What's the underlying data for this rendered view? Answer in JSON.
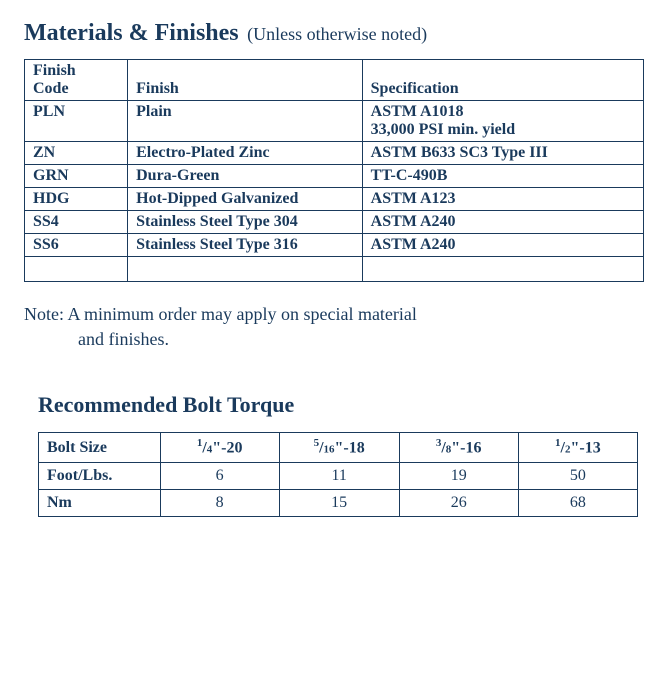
{
  "heading": {
    "main": "Materials & Finishes",
    "sub": "(Unless otherwise noted)"
  },
  "materialsTable": {
    "headers": {
      "codeLine1": "Finish",
      "codeLine2": "Code",
      "finish": "Finish",
      "spec": "Specification"
    },
    "rows": [
      {
        "code": "PLN",
        "finish": "Plain",
        "specLine1": "ASTM A1018",
        "specLine2": "33,000 PSI min. yield"
      },
      {
        "code": "ZN",
        "finish": "Electro-Plated Zinc",
        "specLine1": "ASTM B633 SC3 Type III",
        "specLine2": ""
      },
      {
        "code": "GRN",
        "finish": "Dura-Green",
        "specLine1": "TT-C-490B",
        "specLine2": ""
      },
      {
        "code": "HDG",
        "finish": "Hot-Dipped Galvanized",
        "specLine1": "ASTM A123",
        "specLine2": ""
      },
      {
        "code": "SS4",
        "finish": "Stainless Steel Type 304",
        "specLine1": "ASTM A240",
        "specLine2": ""
      },
      {
        "code": "SS6",
        "finish": "Stainless Steel Type 316",
        "specLine1": "ASTM A240",
        "specLine2": ""
      }
    ]
  },
  "note": {
    "line1": "Note: A minimum order may apply on special material",
    "line2": "and finishes."
  },
  "torque": {
    "title": "Recommended Bolt Torque",
    "headers": {
      "boltSize": "Bolt Size"
    },
    "sizes": [
      {
        "num": "1",
        "den": "4",
        "thread": "\"-20"
      },
      {
        "num": "5",
        "den": "16",
        "thread": "\"-18"
      },
      {
        "num": "3",
        "den": "8",
        "thread": "\"-16"
      },
      {
        "num": "1",
        "den": "2",
        "thread": "\"-13"
      }
    ],
    "rows": [
      {
        "label": "Foot/Lbs.",
        "values": [
          "6",
          "11",
          "19",
          "50"
        ]
      },
      {
        "label": "Nm",
        "values": [
          "8",
          "15",
          "26",
          "68"
        ]
      }
    ]
  },
  "style": {
    "textColor": "#1a3a5c",
    "borderColor": "#1a3a5c",
    "background": "#ffffff",
    "titleFontSize": 24,
    "subtitleFontSize": 18,
    "sectionTitleFontSize": 22,
    "bodyFontSize": 16,
    "noteFontSize": 18
  }
}
